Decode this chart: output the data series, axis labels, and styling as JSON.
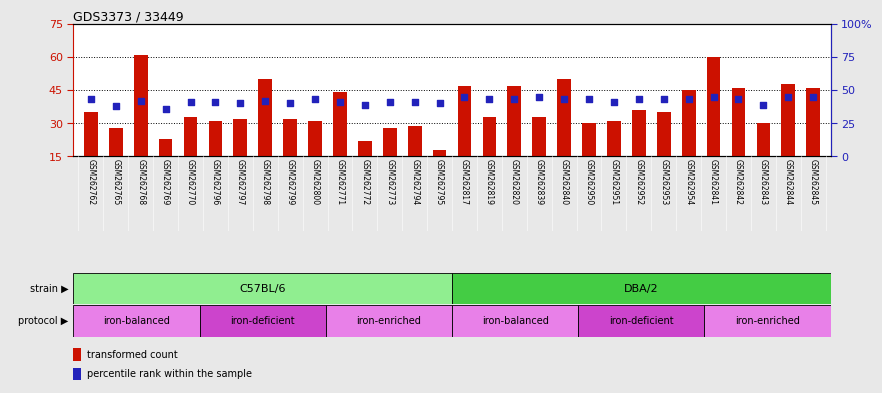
{
  "title": "GDS3373 / 33449",
  "samples": [
    "GSM262762",
    "GSM262765",
    "GSM262768",
    "GSM262769",
    "GSM262770",
    "GSM262796",
    "GSM262797",
    "GSM262798",
    "GSM262799",
    "GSM262800",
    "GSM262771",
    "GSM262772",
    "GSM262773",
    "GSM262794",
    "GSM262795",
    "GSM262817",
    "GSM262819",
    "GSM262820",
    "GSM262839",
    "GSM262840",
    "GSM262950",
    "GSM262951",
    "GSM262952",
    "GSM262953",
    "GSM262954",
    "GSM262841",
    "GSM262842",
    "GSM262843",
    "GSM262844",
    "GSM262845"
  ],
  "red_values": [
    35,
    28,
    61,
    23,
    33,
    31,
    32,
    50,
    32,
    31,
    44,
    22,
    28,
    29,
    18,
    47,
    33,
    47,
    33,
    50,
    30,
    31,
    36,
    35,
    45,
    60,
    46,
    30,
    48,
    46
  ],
  "blue_percentiles": [
    43,
    38,
    42,
    36,
    41,
    41,
    40,
    42,
    40,
    43,
    41,
    39,
    41,
    41,
    40,
    45,
    43,
    43,
    45,
    43,
    43,
    41,
    43,
    43,
    43,
    45,
    43,
    39,
    45,
    45
  ],
  "strain_groups": [
    {
      "label": "C57BL/6",
      "start": 0,
      "end": 15,
      "color": "#90EE90"
    },
    {
      "label": "DBA/2",
      "start": 15,
      "end": 30,
      "color": "#44CC44"
    }
  ],
  "protocol_groups": [
    {
      "label": "iron-balanced",
      "start": 0,
      "end": 5,
      "color": "#E880E8"
    },
    {
      "label": "iron-deficient",
      "start": 5,
      "end": 10,
      "color": "#CC44CC"
    },
    {
      "label": "iron-enriched",
      "start": 10,
      "end": 15,
      "color": "#E880E8"
    },
    {
      "label": "iron-balanced",
      "start": 15,
      "end": 20,
      "color": "#E880E8"
    },
    {
      "label": "iron-deficient",
      "start": 20,
      "end": 25,
      "color": "#CC44CC"
    },
    {
      "label": "iron-enriched",
      "start": 25,
      "end": 30,
      "color": "#E880E8"
    }
  ],
  "ylim_left": [
    15,
    75
  ],
  "ylim_right": [
    0,
    100
  ],
  "yticks_left": [
    15,
    30,
    45,
    60,
    75
  ],
  "yticks_right": [
    0,
    25,
    50,
    75,
    100
  ],
  "bar_color": "#CC1100",
  "dot_color": "#2222BB",
  "background_color": "#E8E8E8",
  "plot_bg": "#FFFFFF",
  "xticklabel_bg": "#CCCCCC",
  "grid_color": "#000000",
  "left_tick_color": "#CC1100",
  "right_tick_color": "#2222BB",
  "bar_width": 0.55
}
